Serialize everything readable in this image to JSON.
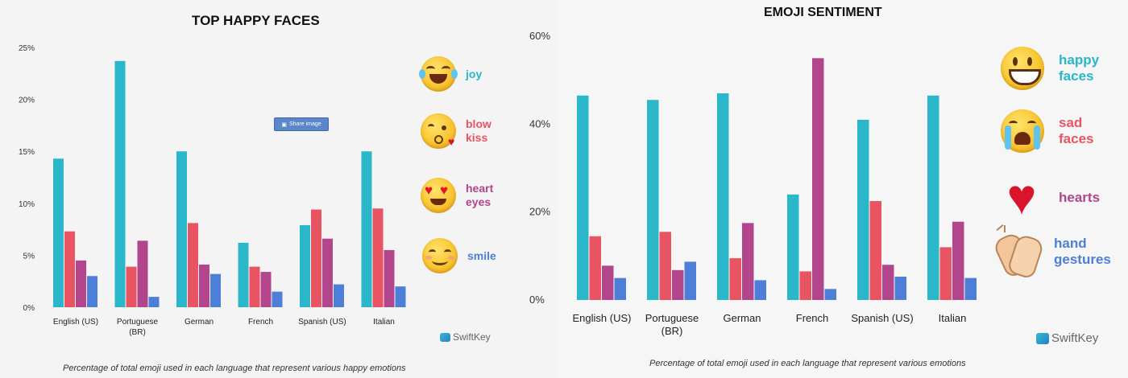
{
  "colors": {
    "teal": "#2ab7c9",
    "coral": "#e95463",
    "purple": "#b2458c",
    "blue": "#4d7fd8"
  },
  "left": {
    "title": "TOP HAPPY FACES",
    "caption": "Percentage of total emoji used in each language that represent various happy emotions",
    "share_label": "Share image",
    "brand": "SwiftKey",
    "legend": [
      {
        "label": "joy",
        "icon": "joy-emoji-icon",
        "color": "#2ab7c9"
      },
      {
        "label": "blow\nkiss",
        "icon": "blow-kiss-emoji-icon",
        "color": "#e95463"
      },
      {
        "label": "heart\neyes",
        "icon": "heart-eyes-emoji-icon",
        "color": "#b2458c"
      },
      {
        "label": "smile",
        "icon": "smile-emoji-icon",
        "color": "#4d7fd8"
      }
    ]
  },
  "right": {
    "title": "EMOJI SENTIMENT",
    "caption": "Percentage of total emoji used in each language that represent various emotions",
    "brand": "SwiftKey",
    "legend": [
      {
        "label": "happy\nfaces",
        "icon": "happy-face-emoji-icon",
        "color": "#2ab7c9"
      },
      {
        "label": "sad\nfaces",
        "icon": "sad-face-emoji-icon",
        "color": "#e95463"
      },
      {
        "label": "hearts",
        "icon": "heart-icon",
        "color": "#b2458c"
      },
      {
        "label": "hand\ngestures",
        "icon": "clapping-hands-icon",
        "color": "#4d7fd8"
      }
    ]
  },
  "chart_data": [
    {
      "type": "bar",
      "title": "TOP HAPPY FACES",
      "categories": [
        "English (US)",
        "Portuguese\n(BR)",
        "German",
        "French",
        "Spanish (US)",
        "Italian"
      ],
      "series": [
        {
          "name": "joy",
          "values": [
            14.3,
            23.7,
            15.0,
            6.2,
            7.9,
            15.0
          ]
        },
        {
          "name": "blow kiss",
          "values": [
            7.3,
            3.9,
            8.1,
            3.9,
            9.4,
            9.5
          ]
        },
        {
          "name": "heart eyes",
          "values": [
            4.5,
            6.4,
            4.1,
            3.4,
            6.6,
            5.5
          ]
        },
        {
          "name": "smile",
          "values": [
            3.0,
            1.0,
            3.2,
            1.5,
            2.2,
            2.0
          ]
        }
      ],
      "yticks": [
        "0%",
        "5%",
        "10%",
        "15%",
        "20%",
        "25%"
      ],
      "ylim": [
        0,
        25
      ],
      "grid": false,
      "legend": "right"
    },
    {
      "type": "bar",
      "title": "EMOJI SENTIMENT",
      "categories": [
        "English (US)",
        "Portuguese\n(BR)",
        "German",
        "French",
        "Spanish (US)",
        "Italian"
      ],
      "series": [
        {
          "name": "happy faces",
          "values": [
            46.5,
            45.5,
            47.0,
            24.0,
            41.0,
            46.5
          ]
        },
        {
          "name": "sad faces",
          "values": [
            14.5,
            15.5,
            9.5,
            6.5,
            22.5,
            12.0
          ]
        },
        {
          "name": "hearts",
          "values": [
            7.8,
            6.8,
            17.5,
            55.0,
            8.0,
            17.8
          ]
        },
        {
          "name": "hand gestures",
          "values": [
            5.0,
            8.7,
            4.5,
            2.5,
            5.3,
            5.0
          ]
        }
      ],
      "yticks": [
        "0%",
        "20%",
        "40%",
        "60%"
      ],
      "ylim": [
        0,
        60
      ],
      "grid": false,
      "legend": "right"
    }
  ]
}
